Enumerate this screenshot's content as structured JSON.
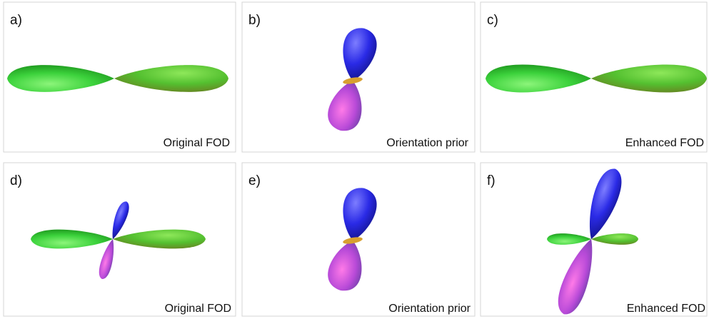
{
  "panels": [
    {
      "label": "a)",
      "caption": "Original FOD"
    },
    {
      "label": "b)",
      "caption": "Orientation prior"
    },
    {
      "label": "c)",
      "caption": "Enhanced FOD"
    },
    {
      "label": "d)",
      "caption": "Original FOD"
    },
    {
      "label": "e)",
      "caption": "Orientation prior"
    },
    {
      "label": "f)",
      "caption": "Enhanced FOD"
    }
  ]
}
